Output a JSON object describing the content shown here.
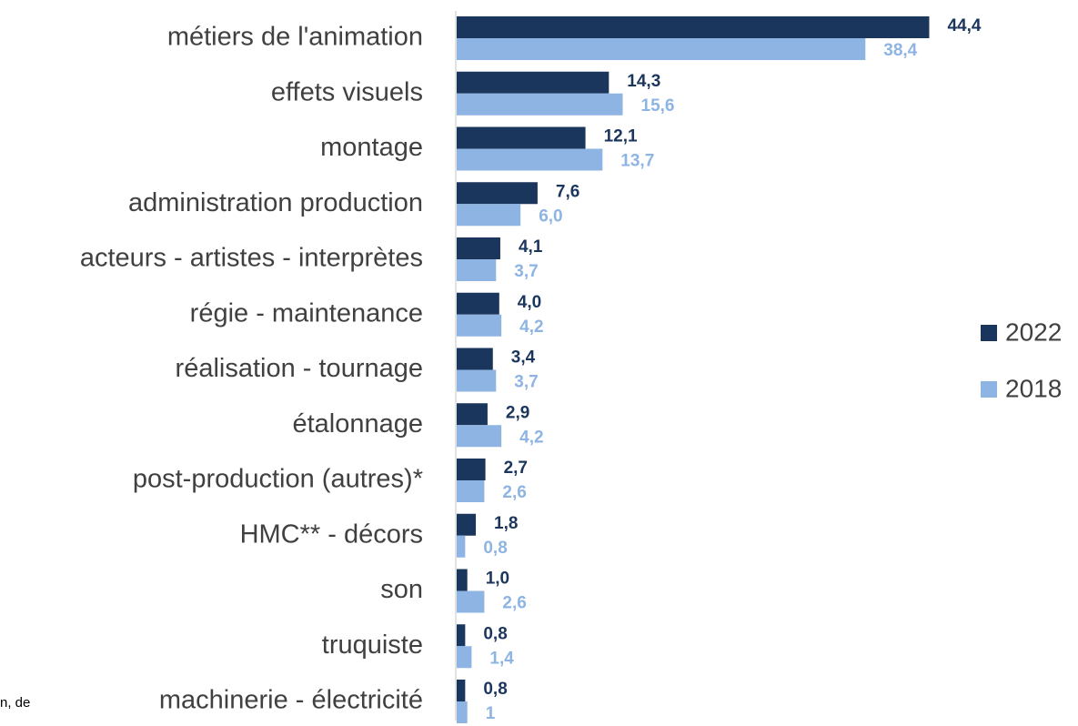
{
  "chart_data": {
    "type": "hbar",
    "categories": [
      "métiers de l'animation",
      "effets visuels",
      "montage",
      "administration production",
      "acteurs - artistes - interprètes",
      "régie - maintenance",
      "réalisation - tournage",
      "étalonnage",
      "post-production (autres)*",
      "HMC** - décors",
      "son",
      "truquiste",
      "machinerie - électricité"
    ],
    "series": [
      {
        "name": "2022",
        "color": "#1b365d",
        "values": [
          44.4,
          14.3,
          12.1,
          7.6,
          4.1,
          4.0,
          3.4,
          2.9,
          2.7,
          1.8,
          1.0,
          0.8,
          0.8
        ],
        "value_labels": [
          "44,4",
          "14,3",
          "12,1",
          "7,6",
          "4,1",
          "4,0",
          "3,4",
          "2,9",
          "2,7",
          "1,8",
          "1,0",
          "0,8",
          "0,8"
        ]
      },
      {
        "name": "2018",
        "color": "#8eb4e3",
        "values": [
          38.4,
          15.6,
          13.7,
          6.0,
          3.7,
          4.2,
          3.7,
          4.2,
          2.6,
          0.8,
          2.6,
          1.4,
          1
        ],
        "value_labels": [
          "38,4",
          "15,6",
          "13,7",
          "6,0",
          "3,7",
          "4,2",
          "3,7",
          "4,2",
          "2,6",
          "0,8",
          "2,6",
          "1,4",
          "1"
        ]
      }
    ],
    "legend": "right",
    "footnote": "n, de"
  }
}
